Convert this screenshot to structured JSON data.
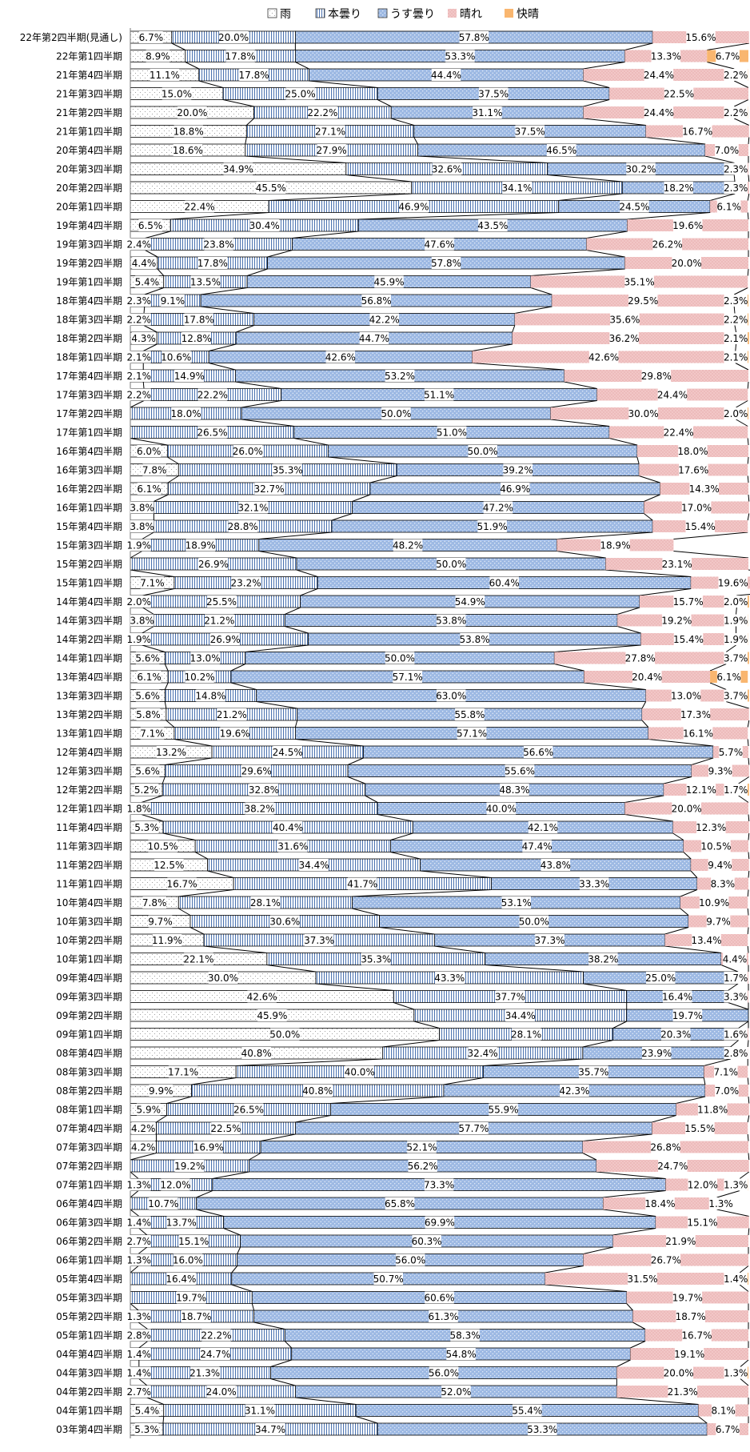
{
  "chart_data": {
    "type": "bar",
    "orientation": "horizontal",
    "stacked": "percent",
    "title": "",
    "xlabel": "",
    "ylabel": "",
    "xlim": [
      0,
      100
    ],
    "legend_position": "top",
    "grid": false,
    "connector_lines": true,
    "categories": [
      "22年第2四半期(見通し)",
      "22年第1四半期",
      "21年第4四半期",
      "21年第3四半期",
      "21年第2四半期",
      "21年第1四半期",
      "20年第4四半期",
      "20年第3四半期",
      "20年第2四半期",
      "20年第1四半期",
      "19年第4四半期",
      "19年第3四半期",
      "19年第2四半期",
      "19年第1四半期",
      "18年第4四半期",
      "18年第3四半期",
      "18年第2四半期",
      "18年第1四半期",
      "17年第4四半期",
      "17年第3四半期",
      "17年第2四半期",
      "17年第1四半期",
      "16年第4四半期",
      "16年第3四半期",
      "16年第2四半期",
      "16年第1四半期",
      "15年第4四半期",
      "15年第3四半期",
      "15年第2四半期",
      "15年第1四半期",
      "14年第4四半期",
      "14年第3四半期",
      "14年第2四半期",
      "14年第1四半期",
      "13年第4四半期",
      "13年第3四半期",
      "13年第2四半期",
      "13年第1四半期",
      "12年第4四半期",
      "12年第3四半期",
      "12年第2四半期",
      "12年第1四半期",
      "11年第4四半期",
      "11年第3四半期",
      "11年第2四半期",
      "11年第1四半期",
      "10年第4四半期",
      "10年第3四半期",
      "10年第2四半期",
      "10年第1四半期",
      "09年第4四半期",
      "09年第3四半期",
      "09年第2四半期",
      "09年第1四半期",
      "08年第4四半期",
      "08年第3四半期",
      "08年第2四半期",
      "08年第1四半期",
      "07年第4四半期",
      "07年第3四半期",
      "07年第2四半期",
      "07年第1四半期",
      "06年第4四半期",
      "06年第3四半期",
      "06年第2四半期",
      "06年第1四半期",
      "05年第4四半期",
      "05年第3四半期",
      "05年第2四半期",
      "05年第1四半期",
      "04年第4四半期",
      "04年第3四半期",
      "04年第2四半期",
      "04年第1四半期",
      "03年第4四半期"
    ],
    "series": [
      {
        "name": "雨",
        "color": "#ffffff",
        "pattern": "dots",
        "values": [
          6.7,
          8.9,
          11.1,
          15.0,
          20.0,
          18.8,
          18.6,
          34.9,
          45.5,
          22.4,
          6.5,
          2.4,
          4.4,
          5.4,
          2.3,
          2.2,
          4.3,
          2.1,
          2.1,
          2.2,
          0,
          0,
          6.0,
          7.8,
          6.1,
          3.8,
          3.8,
          1.9,
          0,
          7.1,
          2.0,
          3.8,
          1.9,
          5.6,
          6.1,
          5.6,
          5.8,
          7.1,
          13.2,
          5.6,
          5.2,
          1.8,
          5.3,
          10.5,
          12.5,
          16.7,
          7.8,
          9.7,
          11.9,
          22.1,
          30.0,
          42.6,
          45.9,
          50.0,
          40.8,
          17.1,
          9.9,
          5.9,
          4.2,
          4.2,
          0,
          1.3,
          0,
          1.4,
          2.7,
          1.3,
          0,
          0,
          1.3,
          2.8,
          1.4,
          1.4,
          2.7,
          5.4,
          5.3
        ]
      },
      {
        "name": "本曇り",
        "color": "#ffffff",
        "pattern": "vertical-lines",
        "values": [
          20.0,
          17.8,
          17.8,
          25.0,
          22.2,
          27.1,
          27.9,
          32.6,
          34.1,
          46.9,
          30.4,
          23.8,
          17.8,
          13.5,
          9.1,
          17.8,
          12.8,
          10.6,
          14.9,
          22.2,
          18.0,
          26.5,
          26.0,
          35.3,
          32.7,
          32.1,
          28.8,
          18.9,
          26.9,
          23.2,
          25.5,
          21.2,
          26.9,
          13.0,
          10.2,
          14.8,
          21.2,
          19.6,
          24.5,
          29.6,
          32.8,
          38.2,
          40.4,
          31.6,
          34.4,
          41.7,
          28.1,
          30.6,
          37.3,
          35.3,
          43.3,
          37.7,
          34.4,
          28.1,
          32.4,
          40.0,
          40.8,
          26.5,
          22.5,
          16.9,
          19.2,
          12.0,
          10.7,
          13.7,
          15.1,
          16.0,
          16.4,
          19.7,
          18.7,
          22.2,
          24.7,
          21.3,
          24.0,
          31.1,
          34.7
        ]
      },
      {
        "name": "うす曇り",
        "color": "#9db9e3",
        "pattern": "dots",
        "values": [
          57.8,
          53.3,
          44.4,
          37.5,
          31.1,
          37.5,
          46.5,
          30.2,
          18.2,
          24.5,
          43.5,
          47.6,
          57.8,
          45.9,
          56.8,
          42.2,
          44.7,
          42.6,
          53.2,
          51.1,
          50.0,
          51.0,
          50.0,
          39.2,
          46.9,
          47.2,
          51.9,
          48.2,
          50.0,
          60.4,
          54.9,
          53.8,
          53.8,
          50.0,
          57.1,
          63.0,
          55.8,
          57.1,
          56.6,
          55.6,
          48.3,
          40.0,
          42.1,
          47.4,
          43.8,
          33.3,
          53.1,
          50.0,
          37.3,
          38.2,
          25.0,
          16.4,
          19.7,
          20.3,
          23.9,
          35.7,
          42.3,
          55.9,
          57.7,
          52.1,
          56.2,
          73.3,
          65.8,
          69.9,
          60.3,
          56.0,
          50.7,
          60.6,
          61.3,
          58.3,
          54.8,
          56.0,
          52.0,
          55.4,
          53.3
        ]
      },
      {
        "name": "晴れ",
        "color": "#f2c7c7",
        "pattern": "dots",
        "values": [
          15.6,
          13.3,
          24.4,
          22.5,
          24.4,
          16.7,
          7.0,
          2.3,
          2.3,
          6.1,
          19.6,
          26.2,
          20.0,
          35.1,
          29.5,
          35.6,
          36.2,
          42.6,
          29.8,
          24.4,
          30.0,
          22.4,
          18.0,
          17.6,
          14.3,
          17.0,
          15.4,
          18.9,
          23.1,
          19.6,
          15.7,
          19.2,
          15.4,
          27.8,
          20.4,
          13.0,
          17.3,
          16.1,
          5.7,
          9.3,
          12.1,
          20.0,
          12.3,
          10.5,
          9.4,
          8.3,
          10.9,
          9.7,
          13.4,
          4.4,
          1.7,
          3.3,
          0,
          1.6,
          2.8,
          7.1,
          7.0,
          11.8,
          15.5,
          26.8,
          24.7,
          12.0,
          18.4,
          15.1,
          21.9,
          26.7,
          31.5,
          19.7,
          18.7,
          16.7,
          19.1,
          20.0,
          21.3,
          8.1,
          6.7
        ]
      },
      {
        "name": "快晴",
        "color": "#f9b66f",
        "pattern": "solid",
        "values": [
          0,
          6.7,
          2.2,
          0,
          2.2,
          0,
          0,
          0,
          0,
          0,
          0,
          0,
          0,
          0,
          2.3,
          2.2,
          2.1,
          2.1,
          0,
          0,
          2.0,
          0,
          0,
          0,
          0,
          0,
          0,
          0,
          0,
          0,
          2.0,
          1.9,
          1.9,
          3.7,
          6.1,
          3.7,
          0,
          0,
          0,
          0,
          1.7,
          0,
          0,
          0,
          0,
          0,
          0,
          0,
          0,
          0,
          0,
          0,
          0,
          0,
          0,
          0,
          0,
          0,
          0,
          0,
          0,
          1.3,
          1.3,
          0,
          0,
          0,
          1.4,
          0,
          0,
          0,
          0,
          1.3,
          0,
          0,
          0
        ]
      }
    ]
  }
}
